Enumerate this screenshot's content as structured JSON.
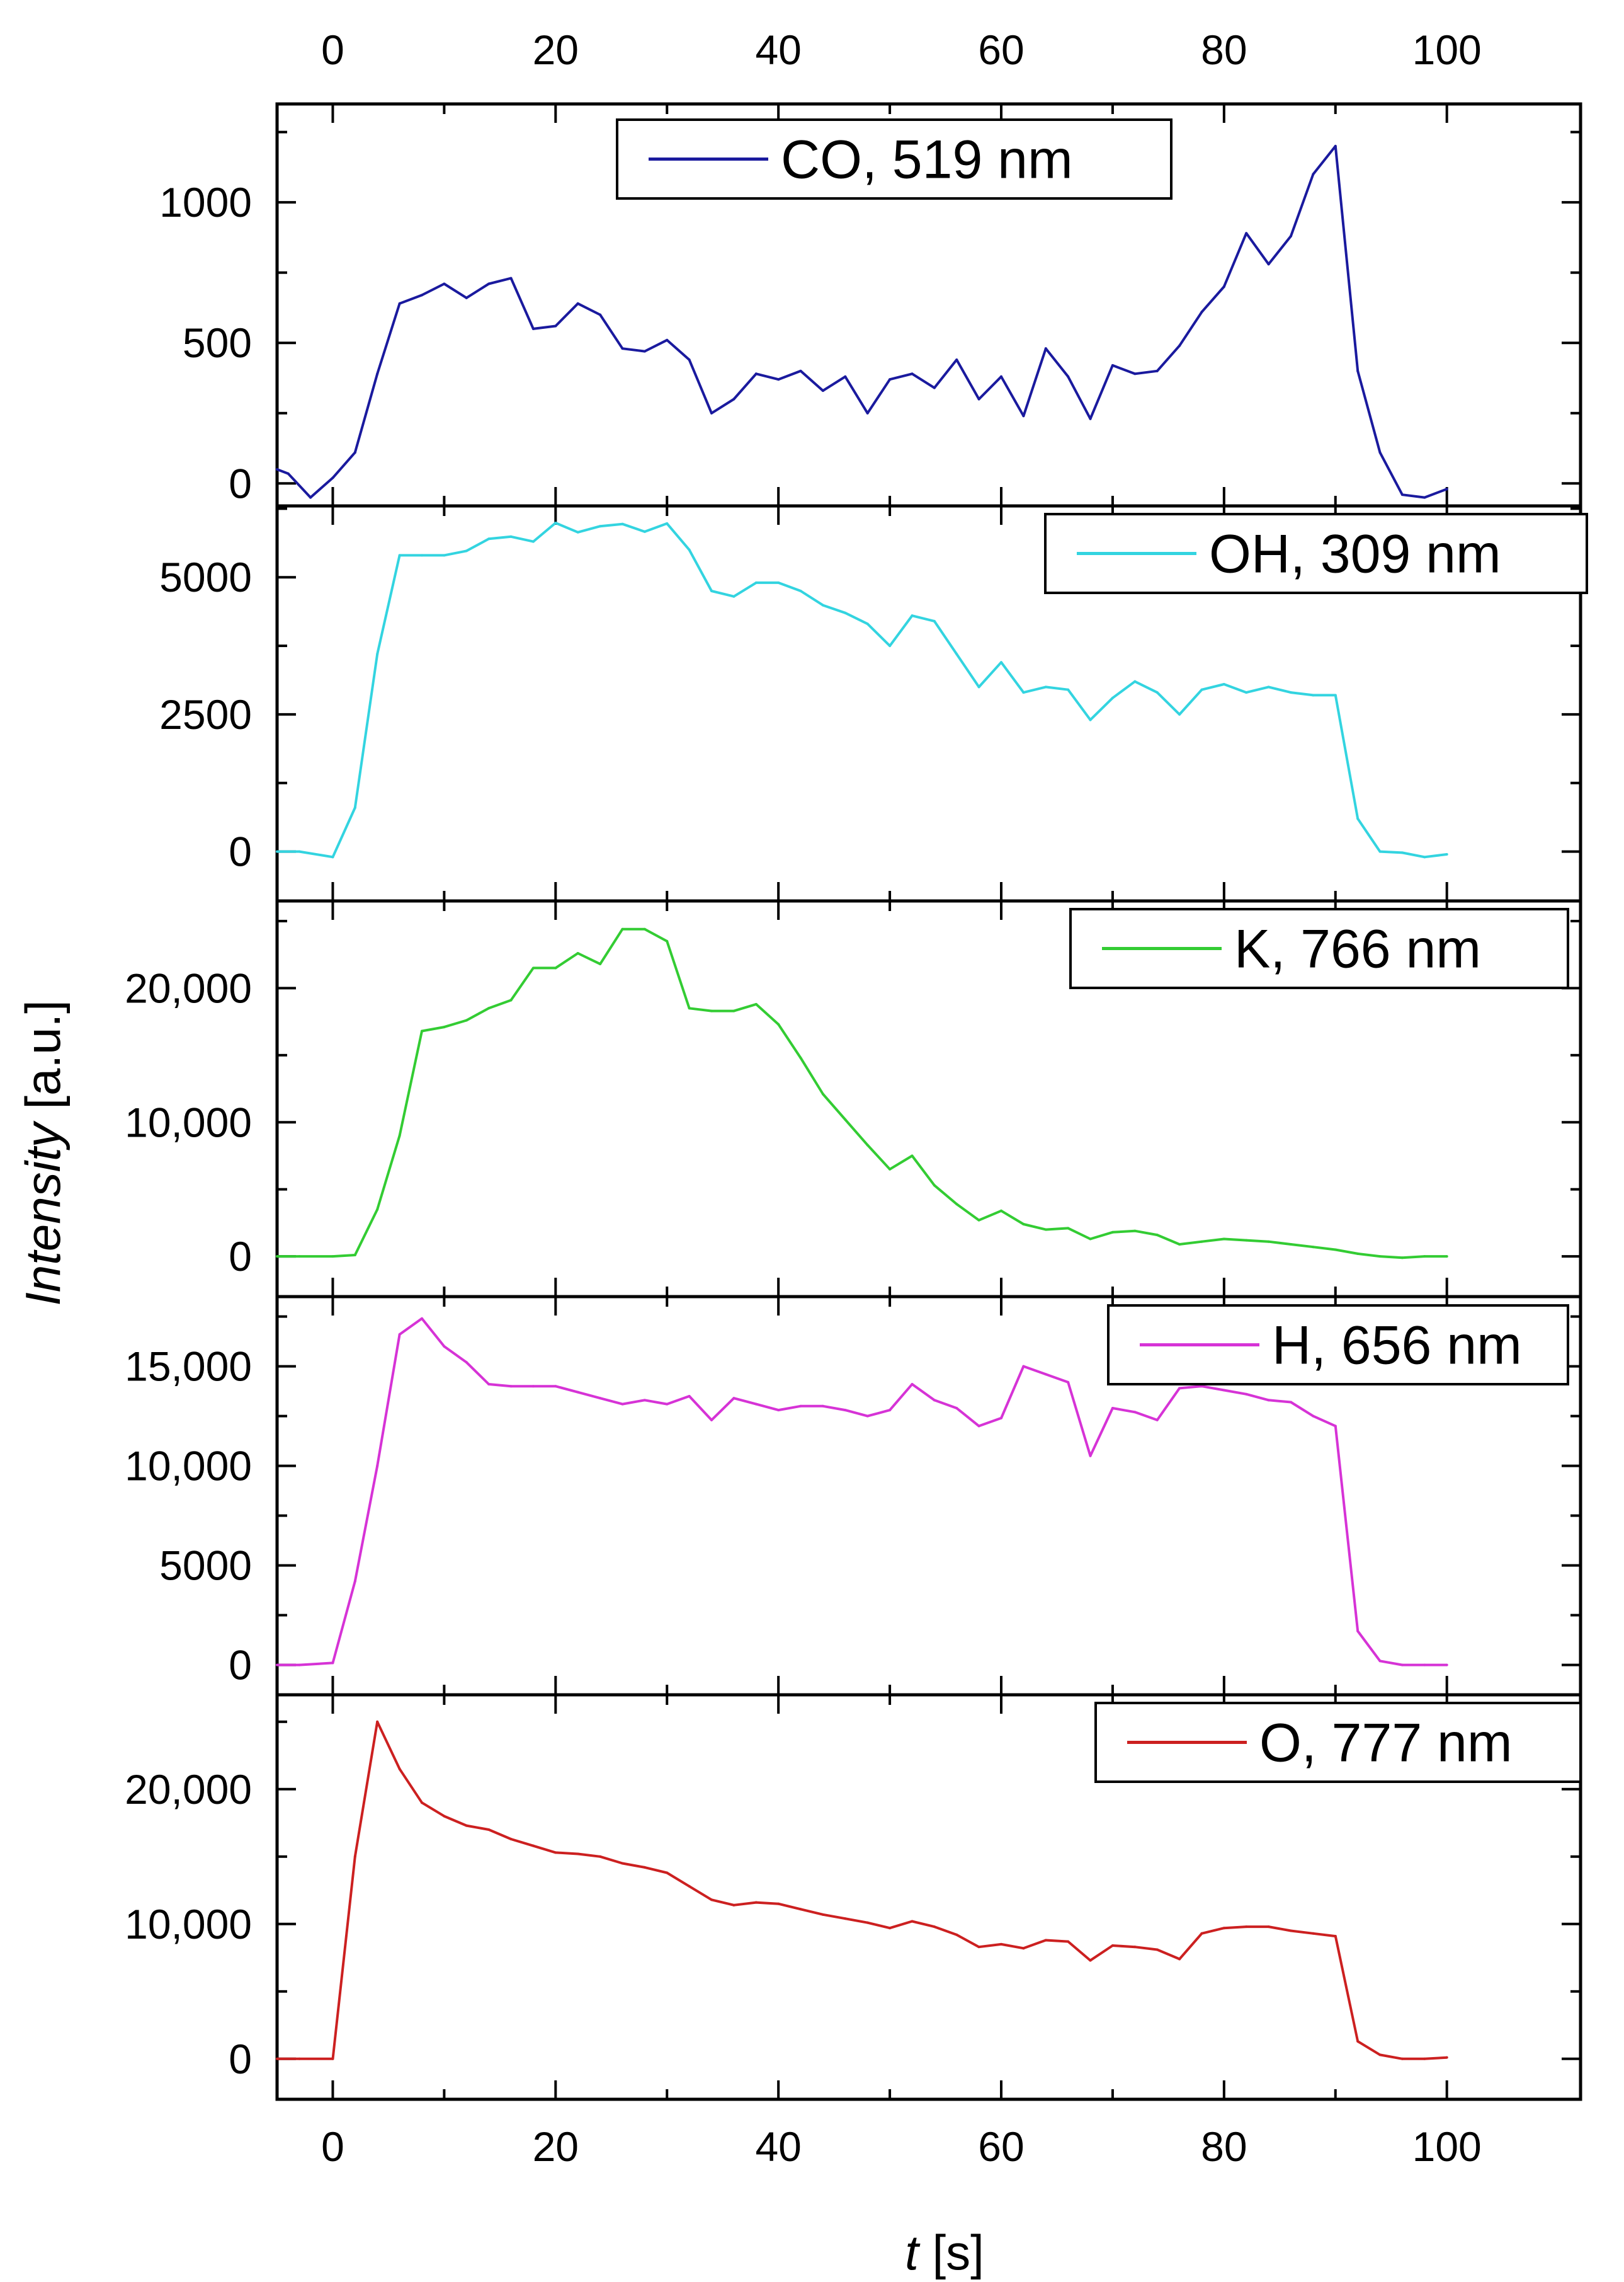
{
  "chart_data": {
    "type": "line",
    "xlabel": {
      "italic": "t",
      "unit": " [s]"
    },
    "ylabel": {
      "italic": "Intensity",
      "unit": " [a.u.]"
    },
    "xlim": [
      -5,
      112
    ],
    "x_ticks": [
      0,
      20,
      40,
      60,
      80,
      100
    ],
    "x_tick_labels": [
      "0",
      "20",
      "40",
      "60",
      "80",
      "100"
    ],
    "x_top_tick_labels": [
      "0",
      "20",
      "40",
      "60",
      "80",
      "100"
    ],
    "grid": false,
    "legend_position": "top-right",
    "panels": [
      {
        "name": "co",
        "legend": "CO, 519 nm",
        "color": "#1a1a9e",
        "ylim": [
          -80,
          1350
        ],
        "y_ticks": [
          0,
          500,
          1000
        ],
        "y_tick_labels": [
          "0",
          "500",
          "1000"
        ],
        "x": [
          -5,
          -4,
          -2,
          0,
          2,
          4,
          6,
          8,
          10,
          12,
          14,
          16,
          18,
          20,
          22,
          24,
          26,
          28,
          30,
          32,
          34,
          36,
          38,
          40,
          42,
          44,
          46,
          48,
          50,
          52,
          54,
          56,
          58,
          60,
          62,
          64,
          66,
          68,
          70,
          72,
          74,
          76,
          78,
          80,
          82,
          84,
          86,
          88,
          90,
          92,
          94,
          96,
          98,
          100
        ],
        "y": [
          50,
          35,
          -50,
          20,
          110,
          390,
          640,
          670,
          710,
          660,
          710,
          730,
          550,
          560,
          640,
          600,
          480,
          470,
          510,
          440,
          250,
          300,
          390,
          370,
          400,
          330,
          380,
          250,
          370,
          390,
          340,
          440,
          300,
          380,
          240,
          480,
          380,
          230,
          420,
          390,
          400,
          490,
          610,
          700,
          890,
          780,
          880,
          1100,
          1200,
          400,
          110,
          -40,
          -50,
          -20
        ]
      },
      {
        "name": "oh",
        "legend": "OH, 309 nm",
        "color": "#33d4e0",
        "ylim": [
          -900,
          6300
        ],
        "y_ticks": [
          0,
          2500,
          5000
        ],
        "y_tick_labels": [
          "0",
          "2500",
          "5000"
        ],
        "x": [
          -5,
          -3,
          0,
          2,
          4,
          6,
          8,
          10,
          12,
          14,
          16,
          18,
          20,
          22,
          24,
          26,
          28,
          30,
          32,
          34,
          36,
          38,
          40,
          42,
          44,
          46,
          48,
          50,
          52,
          54,
          56,
          58,
          60,
          62,
          64,
          66,
          68,
          70,
          72,
          74,
          76,
          78,
          80,
          82,
          84,
          86,
          88,
          90,
          92,
          94,
          96,
          98,
          100
        ],
        "y": [
          0,
          0,
          -100,
          800,
          3600,
          5400,
          5400,
          5400,
          5480,
          5700,
          5740,
          5650,
          5990,
          5820,
          5930,
          5970,
          5830,
          5980,
          5500,
          4750,
          4650,
          4900,
          4900,
          4750,
          4490,
          4350,
          4150,
          3750,
          4300,
          4200,
          3600,
          3000,
          3450,
          2900,
          3000,
          2950,
          2400,
          2800,
          3100,
          2900,
          2500,
          2950,
          3050,
          2900,
          3000,
          2900,
          2850,
          2850,
          600,
          0,
          -20,
          -100,
          -50
        ]
      },
      {
        "name": "k",
        "legend": "K, 766 nm",
        "color": "#33cc33",
        "ylim": [
          -3000,
          26500
        ],
        "y_ticks": [
          0,
          10000,
          20000
        ],
        "y_tick_labels": [
          "0",
          "10,000",
          "20,000"
        ],
        "x": [
          -5,
          -3,
          0,
          2,
          4,
          6,
          8,
          10,
          12,
          14,
          16,
          18,
          20,
          22,
          24,
          26,
          28,
          30,
          32,
          34,
          36,
          38,
          40,
          42,
          44,
          46,
          48,
          50,
          52,
          54,
          56,
          58,
          60,
          62,
          64,
          66,
          68,
          70,
          72,
          74,
          76,
          78,
          80,
          82,
          84,
          86,
          88,
          90,
          92,
          94,
          96,
          98,
          100
        ],
        "y": [
          0,
          0,
          0,
          100,
          3500,
          9000,
          16800,
          17100,
          17600,
          18500,
          19100,
          21500,
          21500,
          22600,
          21800,
          24400,
          24400,
          23500,
          18500,
          18300,
          18300,
          18800,
          17300,
          14800,
          12100,
          10200,
          8300,
          6500,
          7500,
          5300,
          3900,
          2700,
          3400,
          2400,
          2000,
          2100,
          1300,
          1800,
          1900,
          1600,
          900,
          1100,
          1300,
          1200,
          1100,
          900,
          700,
          500,
          200,
          0,
          -100,
          0,
          0
        ]
      },
      {
        "name": "h",
        "legend": "H, 656 nm",
        "color": "#d633d6",
        "ylim": [
          -1500,
          18500
        ],
        "y_ticks": [
          0,
          5000,
          10000,
          15000
        ],
        "y_tick_labels": [
          "0",
          "5000",
          "10,000",
          "15,000"
        ],
        "x": [
          -5,
          -3,
          0,
          2,
          4,
          6,
          8,
          10,
          12,
          14,
          16,
          18,
          20,
          22,
          24,
          26,
          28,
          30,
          32,
          34,
          36,
          38,
          40,
          42,
          44,
          46,
          48,
          50,
          52,
          54,
          56,
          58,
          60,
          62,
          64,
          66,
          68,
          70,
          72,
          74,
          76,
          78,
          80,
          82,
          84,
          86,
          88,
          90,
          92,
          94,
          96,
          98,
          100
        ],
        "y": [
          0,
          0,
          100,
          4200,
          10000,
          16600,
          17400,
          16000,
          15200,
          14100,
          14000,
          14000,
          14000,
          13700,
          13400,
          13100,
          13300,
          13100,
          13500,
          12300,
          13400,
          13100,
          12800,
          13000,
          13000,
          12800,
          12500,
          12800,
          14100,
          13300,
          12900,
          12000,
          12400,
          15000,
          14600,
          14200,
          10500,
          12900,
          12700,
          12300,
          13900,
          14000,
          13800,
          13600,
          13300,
          13200,
          12500,
          12000,
          1700,
          200,
          0,
          0,
          0
        ]
      },
      {
        "name": "o",
        "legend": "O, 777 nm",
        "color": "#cc2020",
        "ylim": [
          -3000,
          27000
        ],
        "y_ticks": [
          0,
          10000,
          20000
        ],
        "y_tick_labels": [
          "0",
          "10,000",
          "20,000"
        ],
        "x": [
          -5,
          -3,
          0,
          2,
          4,
          6,
          8,
          10,
          12,
          14,
          16,
          18,
          20,
          22,
          24,
          26,
          28,
          30,
          32,
          34,
          36,
          38,
          40,
          42,
          44,
          46,
          48,
          50,
          52,
          54,
          56,
          58,
          60,
          62,
          64,
          66,
          68,
          70,
          72,
          74,
          76,
          78,
          80,
          82,
          84,
          86,
          88,
          90,
          92,
          94,
          96,
          98,
          100
        ],
        "y": [
          0,
          0,
          0,
          15000,
          25000,
          21500,
          19000,
          18000,
          17300,
          17000,
          16300,
          15800,
          15300,
          15200,
          15000,
          14500,
          14200,
          13800,
          12800,
          11800,
          11400,
          11600,
          11500,
          11100,
          10700,
          10400,
          10100,
          9700,
          10200,
          9800,
          9200,
          8300,
          8500,
          8200,
          8800,
          8700,
          7300,
          8400,
          8300,
          8100,
          7400,
          9300,
          9700,
          9800,
          9800,
          9500,
          9300,
          9100,
          1300,
          300,
          0,
          0,
          100
        ]
      }
    ]
  }
}
